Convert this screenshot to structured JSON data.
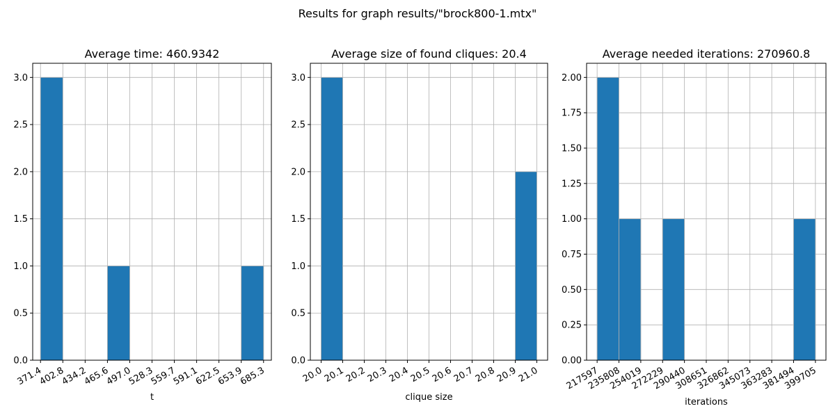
{
  "suptitle": "Results for graph results/\"brock800-1.mtx\"",
  "colors": {
    "bar": "#1f77b4",
    "grid": "#b0b0b0",
    "edge": "#000000"
  },
  "chart_data": [
    {
      "type": "bar",
      "title": "Average time: 460.9342",
      "xlabel": "t",
      "ylabel": "",
      "ylim": [
        0,
        3.15
      ],
      "xlim": [
        360.4,
        696.3
      ],
      "yticks": [
        0.0,
        0.5,
        1.0,
        1.5,
        2.0,
        2.5,
        3.0
      ],
      "ytick_labels": [
        "0.0",
        "0.5",
        "1.0",
        "1.5",
        "2.0",
        "2.5",
        "3.0"
      ],
      "xticks": [
        371.4,
        402.8,
        434.2,
        465.6,
        497.0,
        528.3,
        559.7,
        591.1,
        622.5,
        653.9,
        685.3
      ],
      "xtick_labels": [
        "371.4",
        "402.8",
        "434.2",
        "465.6",
        "497.0",
        "528.3",
        "559.7",
        "591.1",
        "622.5",
        "653.9",
        "685.3"
      ],
      "bins": [
        {
          "start": 371.4,
          "end": 402.8,
          "count": 3
        },
        {
          "start": 402.8,
          "end": 434.2,
          "count": 0
        },
        {
          "start": 434.2,
          "end": 465.6,
          "count": 0
        },
        {
          "start": 465.6,
          "end": 497.0,
          "count": 1
        },
        {
          "start": 497.0,
          "end": 528.3,
          "count": 0
        },
        {
          "start": 528.3,
          "end": 559.7,
          "count": 0
        },
        {
          "start": 559.7,
          "end": 591.1,
          "count": 0
        },
        {
          "start": 591.1,
          "end": 622.5,
          "count": 0
        },
        {
          "start": 622.5,
          "end": 653.9,
          "count": 0
        },
        {
          "start": 653.9,
          "end": 685.3,
          "count": 1
        }
      ],
      "grid": true
    },
    {
      "type": "bar",
      "title": "Average size of found cliques: 20.4",
      "xlabel": "clique size",
      "ylabel": "",
      "ylim": [
        0,
        3.15
      ],
      "xlim": [
        19.95,
        21.05
      ],
      "yticks": [
        0.0,
        0.5,
        1.0,
        1.5,
        2.0,
        2.5,
        3.0
      ],
      "ytick_labels": [
        "0.0",
        "0.5",
        "1.0",
        "1.5",
        "2.0",
        "2.5",
        "3.0"
      ],
      "xticks": [
        20.0,
        20.1,
        20.2,
        20.3,
        20.4,
        20.5,
        20.6,
        20.7,
        20.8,
        20.9,
        21.0
      ],
      "xtick_labels": [
        "20.0",
        "20.1",
        "20.2",
        "20.3",
        "20.4",
        "20.5",
        "20.6",
        "20.7",
        "20.8",
        "20.9",
        "21.0"
      ],
      "bins": [
        {
          "start": 20.0,
          "end": 20.1,
          "count": 3
        },
        {
          "start": 20.1,
          "end": 20.2,
          "count": 0
        },
        {
          "start": 20.2,
          "end": 20.3,
          "count": 0
        },
        {
          "start": 20.3,
          "end": 20.4,
          "count": 0
        },
        {
          "start": 20.4,
          "end": 20.5,
          "count": 0
        },
        {
          "start": 20.5,
          "end": 20.6,
          "count": 0
        },
        {
          "start": 20.6,
          "end": 20.7,
          "count": 0
        },
        {
          "start": 20.7,
          "end": 20.8,
          "count": 0
        },
        {
          "start": 20.8,
          "end": 20.9,
          "count": 0
        },
        {
          "start": 20.9,
          "end": 21.0,
          "count": 2
        }
      ],
      "grid": true
    },
    {
      "type": "bar",
      "title": "Average needed iterations: 270960.8",
      "xlabel": "iterations",
      "ylabel": "",
      "ylim": [
        0,
        2.1
      ],
      "xlim": [
        208807,
        408493
      ],
      "yticks": [
        0.0,
        0.25,
        0.5,
        0.75,
        1.0,
        1.25,
        1.5,
        1.75,
        2.0
      ],
      "ytick_labels": [
        "0.00",
        "0.25",
        "0.50",
        "0.75",
        "1.00",
        "1.25",
        "1.50",
        "1.75",
        "2.00"
      ],
      "xticks": [
        217597,
        235808,
        254019,
        272229,
        290440,
        308651,
        326862,
        345073,
        363283,
        381494,
        399705
      ],
      "xtick_labels": [
        "217597",
        "235808",
        "254019",
        "272229",
        "290440",
        "308651",
        "326862",
        "345073",
        "363283",
        "381494",
        "399705"
      ],
      "bins": [
        {
          "start": 217597,
          "end": 235808,
          "count": 2
        },
        {
          "start": 235808,
          "end": 254019,
          "count": 1
        },
        {
          "start": 254019,
          "end": 272229,
          "count": 0
        },
        {
          "start": 272229,
          "end": 290440,
          "count": 1
        },
        {
          "start": 290440,
          "end": 308651,
          "count": 0
        },
        {
          "start": 308651,
          "end": 326862,
          "count": 0
        },
        {
          "start": 326862,
          "end": 345073,
          "count": 0
        },
        {
          "start": 345073,
          "end": 363283,
          "count": 0
        },
        {
          "start": 363283,
          "end": 381494,
          "count": 0
        },
        {
          "start": 381494,
          "end": 399705,
          "count": 1
        }
      ],
      "grid": true
    }
  ]
}
